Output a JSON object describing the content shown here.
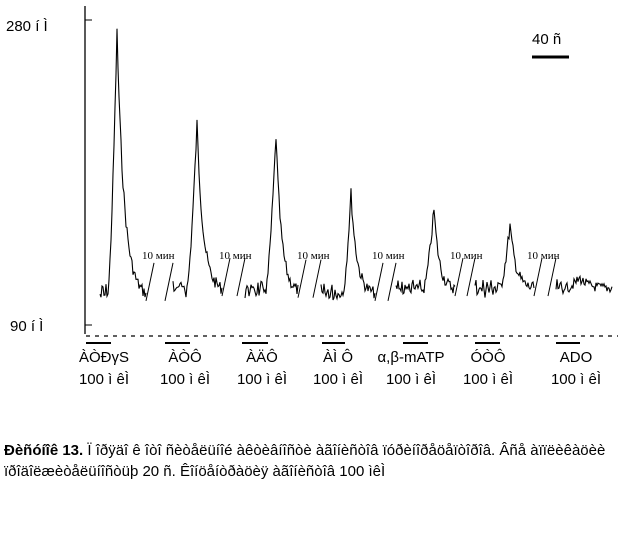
{
  "chart_data": {
    "type": "line",
    "y_tick_labels": [
      {
        "value": 280,
        "label": "280 í Ì"
      },
      {
        "value": 90,
        "label": "90 í Ì"
      }
    ],
    "ylim": [
      90,
      280
    ],
    "scale_bar_label": "40 ñ",
    "gap_label": "10 мин",
    "stimuli": [
      {
        "name": "ÀÒÐγS",
        "dose": "100 ì êÌ"
      },
      {
        "name": "ÀÒÔ",
        "dose": "100 ì êÌ"
      },
      {
        "name": "ÀÄÔ",
        "dose": "100 ì êÌ"
      },
      {
        "name": "ÀÌ Ô",
        "dose": "100 ì êÌ"
      },
      {
        "name": "α,β-mATP",
        "dose": "100 ì êÌ"
      },
      {
        "name": "ÓÒÔ",
        "dose": "100 ì êÌ"
      },
      {
        "name": "ADO",
        "dose": "100 ì êÌ"
      }
    ],
    "responses": [
      {
        "baseline": 110,
        "peak": 272
      },
      {
        "baseline": 113,
        "peak": 215
      },
      {
        "baseline": 112,
        "peak": 208
      },
      {
        "baseline": 110,
        "peak": 172
      },
      {
        "baseline": 113,
        "peak": 162
      },
      {
        "baseline": 113,
        "peak": 152
      },
      {
        "baseline": 113,
        "peak": 119
      }
    ]
  },
  "caption": {
    "label": "Ðèñóíîê 13.",
    "text": "Ï îðÿäî ê îòî ñèòåëüíîé àêòèâíîñòè àãîíèñòîâ ïóðèíîðåöåïòîðîâ. Âñå àïïëèêàöèè ïðîäîëæèòåëüíîñòüþ 20 ñ. Êîíöåíòðàöèÿ àãîíèñòîâ 100 ìêÌ"
  }
}
